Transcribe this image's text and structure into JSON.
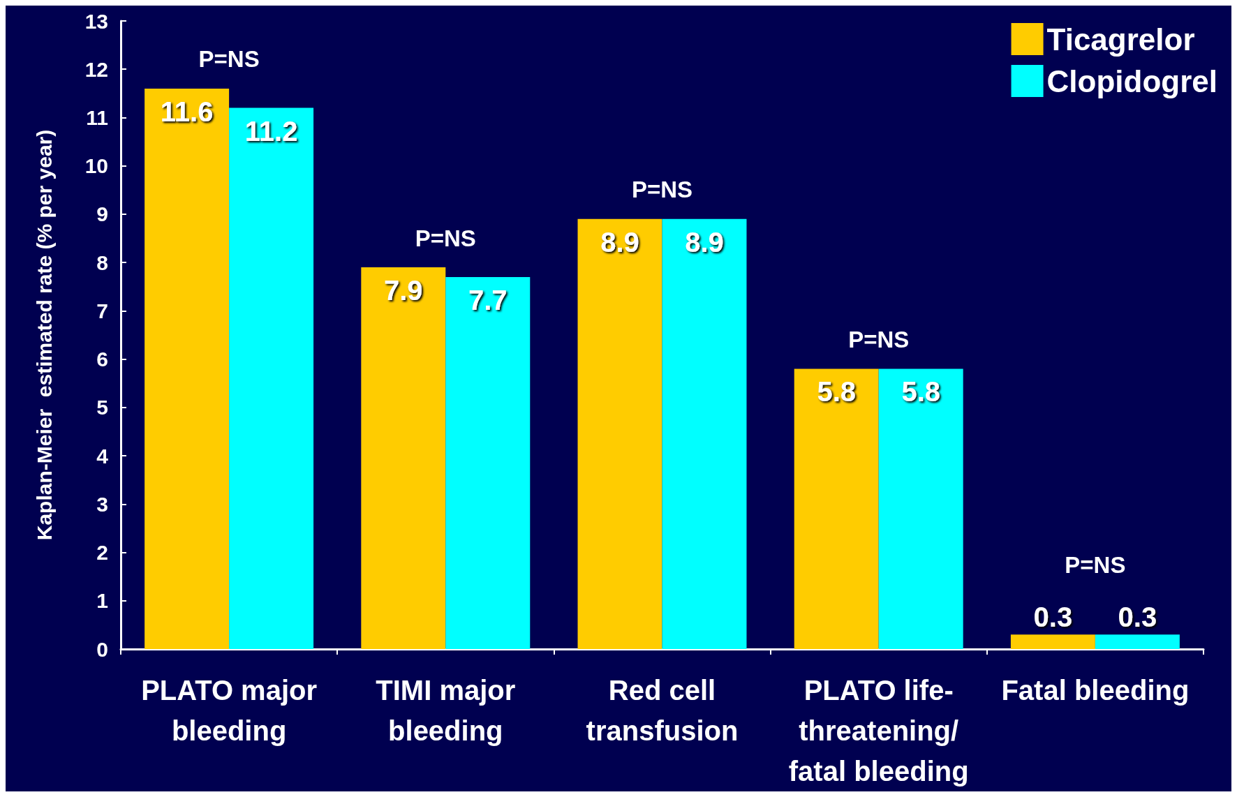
{
  "chart_data": {
    "type": "bar",
    "ylabel": "Kaplan-Meier  estimated rate (% per year)",
    "categories": [
      "PLATO major bleeding",
      "TIMI major bleeding",
      "Red cell transfusion",
      "PLATO life-threatening/ fatal bleeding",
      "Fatal bleeding"
    ],
    "series": [
      {
        "name": "Ticagrelor",
        "color": "#ffcc00",
        "values": [
          11.6,
          7.9,
          8.9,
          5.8,
          0.3
        ]
      },
      {
        "name": "Clopidogrel",
        "color": "#00ffff",
        "values": [
          11.2,
          7.7,
          8.9,
          5.8,
          0.3
        ]
      }
    ],
    "ylim": [
      0,
      13
    ],
    "yticks": [
      0,
      1,
      2,
      3,
      4,
      5,
      6,
      7,
      8,
      9,
      10,
      11,
      12,
      13
    ],
    "grid": false,
    "legend": "top right",
    "data_labels": true,
    "annotations": [
      "P=NS",
      "P=NS",
      "P=NS",
      "P=NS",
      "P=NS"
    ]
  }
}
